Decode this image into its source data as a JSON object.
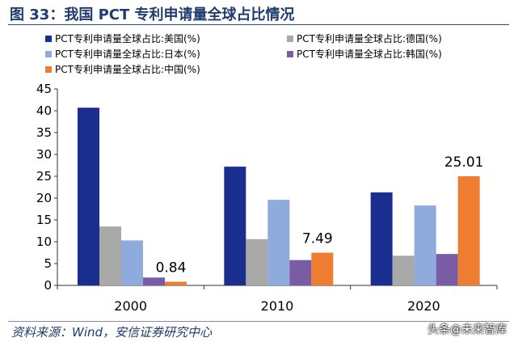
{
  "header": {
    "title": "图 33：我国 PCT 专利申请量全球占比情况"
  },
  "footer": {
    "source": "资料来源：Wind，安信证券研究中心",
    "watermark": "头条@未来智库"
  },
  "chart_data": {
    "type": "bar",
    "title": "",
    "xlabel": "",
    "ylabel": "",
    "categories": [
      "2000",
      "2010",
      "2020"
    ],
    "ylim": [
      0,
      45
    ],
    "yticks": [
      0,
      5,
      10,
      15,
      20,
      25,
      30,
      35,
      40,
      45
    ],
    "grid": false,
    "legend_position": "top",
    "series": [
      {
        "name": "PCT专利申请量全球占比:美国(%)",
        "color": "#1a2e8f",
        "values": [
          40.7,
          27.2,
          21.3
        ]
      },
      {
        "name": "PCT专利申请量全球占比:德国(%)",
        "color": "#a9a9a9",
        "values": [
          13.5,
          10.6,
          6.8
        ]
      },
      {
        "name": "PCT专利申请量全球占比:日本(%)",
        "color": "#8faadc",
        "values": [
          10.3,
          19.6,
          18.3
        ]
      },
      {
        "name": "PCT专利申请量全球占比:韩国(%)",
        "color": "#7a5ba6",
        "values": [
          1.8,
          5.8,
          7.2
        ]
      },
      {
        "name": "PCT专利申请量全球占比:中国(%)",
        "color": "#ee7d31",
        "values": [
          0.84,
          7.49,
          25.01
        ]
      }
    ],
    "data_labels": [
      {
        "series": "PCT专利申请量全球占比:中国(%)",
        "category": "2000",
        "value": 0.84,
        "text": "0.84"
      },
      {
        "series": "PCT专利申请量全球占比:中国(%)",
        "category": "2010",
        "value": 7.49,
        "text": "7.49"
      },
      {
        "series": "PCT专利申请量全球占比:中国(%)",
        "category": "2020",
        "value": 25.01,
        "text": "25.01"
      }
    ]
  }
}
